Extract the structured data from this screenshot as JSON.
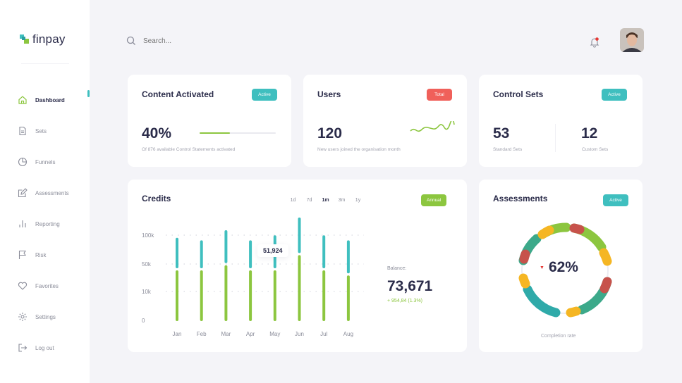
{
  "app": {
    "logo_text": "finpay"
  },
  "sidebar": {
    "items": [
      {
        "label": "Dashboard",
        "icon": "home-icon",
        "active": true
      },
      {
        "label": "Sets",
        "icon": "document-icon",
        "active": false
      },
      {
        "label": "Funnels",
        "icon": "pie-icon",
        "active": false
      },
      {
        "label": "Assessments",
        "icon": "edit-icon",
        "active": false
      },
      {
        "label": "Reporting",
        "icon": "bar-chart-icon",
        "active": false
      },
      {
        "label": "Risk",
        "icon": "flag-icon",
        "active": false
      },
      {
        "label": "Favorites",
        "icon": "heart-icon",
        "active": false
      },
      {
        "label": "Settings",
        "icon": "gear-icon",
        "active": false
      },
      {
        "label": "Log out",
        "icon": "logout-icon",
        "active": false
      }
    ]
  },
  "header": {
    "search_placeholder": "Search..."
  },
  "colors": {
    "teal": "#3fbfbf",
    "green": "#8cc63f",
    "red": "#f0605a",
    "navy": "#2b2c4a"
  },
  "cards": {
    "content": {
      "title": "Content Activated",
      "badge": "Active",
      "value": "40%",
      "progress": 0.4,
      "caption": "Of 876 available Control Statements activated"
    },
    "users": {
      "title": "Users",
      "badge": "Total",
      "value": "120",
      "caption": "New users joined the organisation month"
    },
    "control": {
      "title": "Control Sets",
      "badge": "Active",
      "standard_value": "53",
      "standard_label": "Standard Sets",
      "custom_value": "12",
      "custom_label": "Custom Sets"
    },
    "credits": {
      "title": "Credits",
      "ranges": [
        "1d",
        "7d",
        "1m",
        "3m",
        "1y"
      ],
      "active_range": "1m",
      "badge": "Annual",
      "tooltip": "51,924",
      "balance_label": "Balance:",
      "balance_value": "73,671",
      "balance_change": "+ 954,84 (1.3%)"
    },
    "assessments": {
      "title": "Assessments",
      "badge": "Active",
      "value": "62%",
      "caption": "Completion rate"
    }
  },
  "chart_data": {
    "type": "bar",
    "categories": [
      "Jan",
      "Feb",
      "Mar",
      "Apr",
      "May",
      "Jun",
      "Jul",
      "Aug"
    ],
    "y_ticks": [
      "100k",
      "50k",
      "10k",
      "0"
    ],
    "series": [
      {
        "values": [
          10,
          10,
          11,
          10,
          10,
          13,
          10,
          9
        ]
      },
      {
        "values": [
          6,
          5.5,
          6.5,
          5.5,
          6.5,
          7,
          6.5,
          6.5
        ]
      }
    ]
  }
}
